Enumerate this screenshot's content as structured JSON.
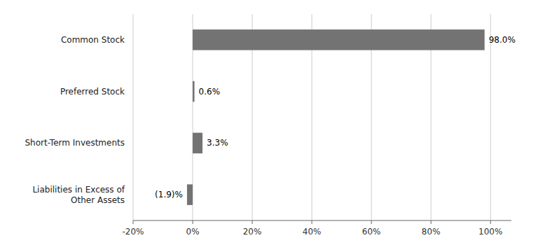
{
  "chart_data": {
    "type": "bar",
    "orientation": "horizontal",
    "categories": [
      "Common Stock",
      "Preferred Stock",
      "Short-Term Investments",
      "Liabilities in Excess of\nOther Assets"
    ],
    "values": [
      98.0,
      0.6,
      3.3,
      -1.9
    ],
    "value_labels": [
      "98.0%",
      "0.6%",
      "3.3%",
      "(1.9)%"
    ],
    "data_labels": true,
    "color": "#737373",
    "xlim": [
      -20,
      107
    ],
    "xticks": [
      {
        "value": -20,
        "label": "-20%"
      },
      {
        "value": 0,
        "label": "0%"
      },
      {
        "value": 20,
        "label": "20%"
      },
      {
        "value": 40,
        "label": "40%"
      },
      {
        "value": 60,
        "label": "60%"
      },
      {
        "value": 80,
        "label": "80%"
      },
      {
        "value": 100,
        "label": "100%"
      }
    ],
    "grid": true
  }
}
